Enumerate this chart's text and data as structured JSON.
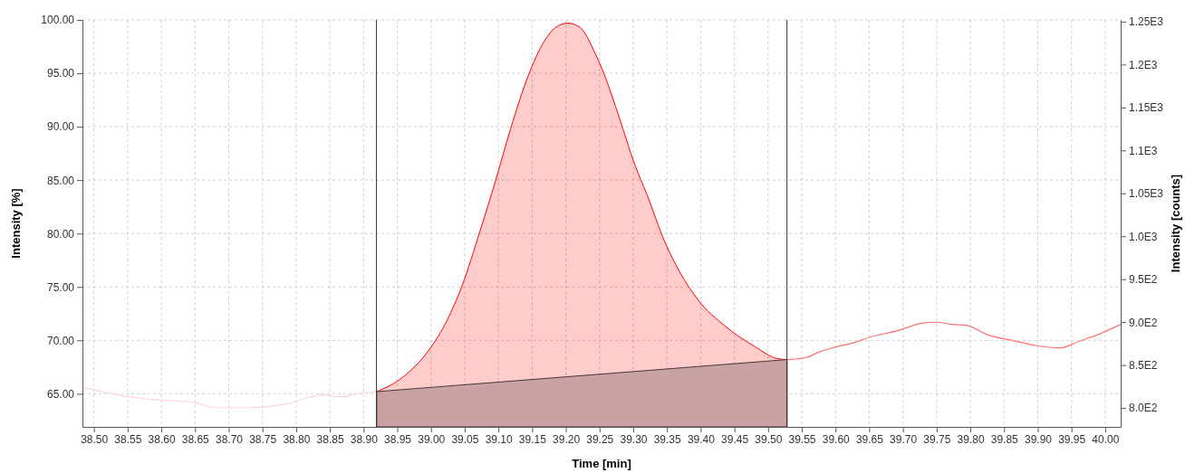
{
  "chart_data": {
    "type": "line",
    "xlabel": "Time [min]",
    "ylabel": "Intensity [%]",
    "y2label": "Intensity [counts]",
    "xlim": [
      38.483,
      40.023
    ],
    "ylim": [
      61.9,
      100.0
    ],
    "y2lim": [
      778,
      1252
    ],
    "xticks": [
      {
        "value": 38.5,
        "label": "38.50"
      },
      {
        "value": 38.55,
        "label": "38.55"
      },
      {
        "value": 38.6,
        "label": "38.60"
      },
      {
        "value": 38.65,
        "label": "38.65"
      },
      {
        "value": 38.7,
        "label": "38.70"
      },
      {
        "value": 38.75,
        "label": "38.75"
      },
      {
        "value": 38.8,
        "label": "38.80"
      },
      {
        "value": 38.85,
        "label": "38.85"
      },
      {
        "value": 38.9,
        "label": "38.90"
      },
      {
        "value": 38.95,
        "label": "38.95"
      },
      {
        "value": 39.0,
        "label": "39.00"
      },
      {
        "value": 39.05,
        "label": "39.05"
      },
      {
        "value": 39.1,
        "label": "39.10"
      },
      {
        "value": 39.15,
        "label": "39.15"
      },
      {
        "value": 39.2,
        "label": "39.20"
      },
      {
        "value": 39.25,
        "label": "39.25"
      },
      {
        "value": 39.3,
        "label": "39.30"
      },
      {
        "value": 39.35,
        "label": "39.35"
      },
      {
        "value": 39.4,
        "label": "39.40"
      },
      {
        "value": 39.45,
        "label": "39.45"
      },
      {
        "value": 39.5,
        "label": "39.50"
      },
      {
        "value": 39.55,
        "label": "39.55"
      },
      {
        "value": 39.6,
        "label": "39.60"
      },
      {
        "value": 39.65,
        "label": "39.65"
      },
      {
        "value": 39.7,
        "label": "39.70"
      },
      {
        "value": 39.75,
        "label": "39.75"
      },
      {
        "value": 39.8,
        "label": "39.80"
      },
      {
        "value": 39.85,
        "label": "39.85"
      },
      {
        "value": 39.9,
        "label": "39.90"
      },
      {
        "value": 39.95,
        "label": "39.95"
      },
      {
        "value": 40.0,
        "label": "40.00"
      }
    ],
    "yticks": [
      {
        "value": 65,
        "label": "65.00"
      },
      {
        "value": 70,
        "label": "70.00"
      },
      {
        "value": 75,
        "label": "75.00"
      },
      {
        "value": 80,
        "label": "80.00"
      },
      {
        "value": 85,
        "label": "85.00"
      },
      {
        "value": 90,
        "label": "90.00"
      },
      {
        "value": 95,
        "label": "95.00"
      },
      {
        "value": 100,
        "label": "100.00"
      }
    ],
    "y2ticks": [
      {
        "value": 800,
        "label": "8.0E2"
      },
      {
        "value": 850,
        "label": "8.5E2"
      },
      {
        "value": 900,
        "label": "9.0E2"
      },
      {
        "value": 950,
        "label": "9.5E2"
      },
      {
        "value": 1000,
        "label": "1.0E3"
      },
      {
        "value": 1050,
        "label": "1.05E3"
      },
      {
        "value": 1100,
        "label": "1.1E3"
      },
      {
        "value": 1150,
        "label": "1.15E3"
      },
      {
        "value": 1200,
        "label": "1.2E3"
      },
      {
        "value": 1250,
        "label": "1.25E3"
      }
    ],
    "grid": true,
    "ref_lines": [
      {
        "axis": "x",
        "value": 38.919,
        "color": "#333333"
      },
      {
        "axis": "x",
        "value": 39.528,
        "color": "#333333"
      }
    ],
    "series": [
      {
        "color": "#ffd6d6",
        "x": [
          38.4835,
          38.536,
          38.598,
          38.648,
          38.679,
          38.733,
          38.782,
          38.84,
          38.867,
          38.899,
          38.919
        ],
        "values": [
          65.6,
          64.9,
          64.4,
          64.2,
          63.7,
          63.7,
          64.0,
          64.9,
          64.7,
          65.1,
          65.2
        ]
      },
      {
        "type": "area",
        "color": "#ff0000",
        "x": [
          38.9195,
          38.957,
          38.997,
          39.024,
          39.046,
          39.073,
          39.096,
          39.118,
          39.145,
          39.167,
          39.185,
          39.203,
          39.221,
          39.244,
          39.257,
          39.279,
          39.302,
          39.32,
          39.347,
          39.369,
          39.396,
          39.437,
          39.481,
          39.513,
          39.528
        ],
        "values": [
          65.2,
          66.5,
          69.1,
          71.9,
          75.1,
          80.3,
          85.0,
          89.8,
          94.9,
          97.9,
          99.3,
          99.7,
          99.3,
          96.8,
          94.9,
          90.9,
          86.5,
          83.7,
          79.2,
          76.4,
          73.8,
          71.3,
          69.4,
          68.3,
          68.2
        ]
      },
      {
        "type": "area",
        "color": "#c9a3a3",
        "x": [
          38.9195,
          39.528
        ],
        "values": [
          65.2,
          68.2
        ]
      },
      {
        "color": "#ff7070",
        "x": [
          39.529,
          39.557,
          39.575,
          39.602,
          39.629,
          39.651,
          39.692,
          39.728,
          39.75,
          39.772,
          39.795,
          39.826,
          39.862,
          39.898,
          39.934,
          39.961,
          39.988,
          40.023
        ],
        "values": [
          68.2,
          68.4,
          68.9,
          69.4,
          69.8,
          70.3,
          70.9,
          71.6,
          71.7,
          71.5,
          71.4,
          70.5,
          70.0,
          69.5,
          69.3,
          69.9,
          70.5,
          71.5
        ]
      }
    ]
  }
}
